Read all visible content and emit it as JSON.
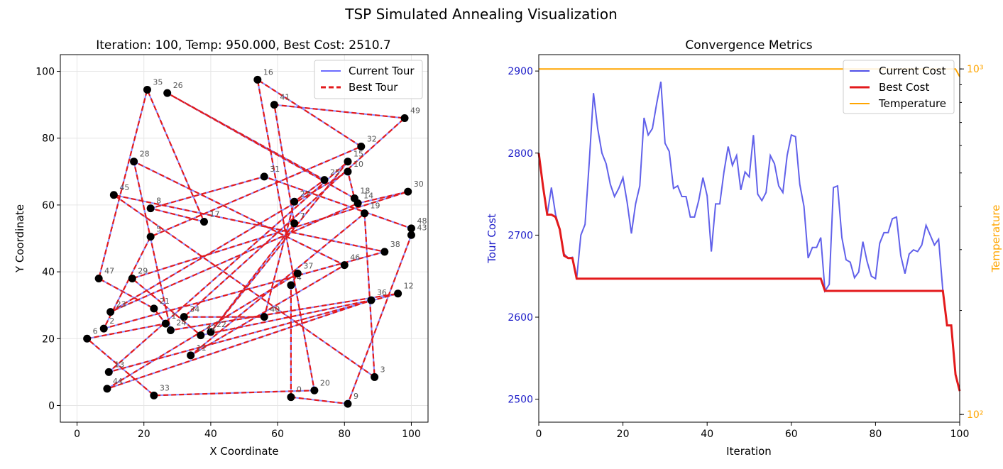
{
  "suptitle": "TSP Simulated Annealing Visualization",
  "chart_data": [
    {
      "type": "scatter",
      "title": "Iteration: 100, Temp: 950.000, Best Cost: 2510.7",
      "xlabel": "X Coordinate",
      "ylabel": "Y Coordinate",
      "xlim": [
        -5,
        105
      ],
      "ylim": [
        -5,
        105
      ],
      "xticks": [
        0,
        20,
        40,
        60,
        80,
        100
      ],
      "yticks": [
        0,
        20,
        40,
        60,
        80,
        100
      ],
      "grid": true,
      "legend": {
        "position": "top-right",
        "entries": [
          "Current Tour",
          "Best Tour"
        ]
      },
      "series_styles": {
        "current": "#6b6bff",
        "best": "#e31a1c",
        "city": "#000000"
      },
      "cities": [
        {
          "id": "0",
          "x": 64,
          "y": 2.5
        },
        {
          "id": "1",
          "x": 26.5,
          "y": 24.5
        },
        {
          "id": "2",
          "x": 8,
          "y": 23
        },
        {
          "id": "3",
          "x": 89,
          "y": 8.5
        },
        {
          "id": "4",
          "x": 64,
          "y": 36
        },
        {
          "id": "5",
          "x": 22,
          "y": 50.5
        },
        {
          "id": "6",
          "x": 3,
          "y": 20
        },
        {
          "id": "7",
          "x": 65,
          "y": 54.5
        },
        {
          "id": "8",
          "x": 22,
          "y": 59
        },
        {
          "id": "9",
          "x": 81,
          "y": 0.5
        },
        {
          "id": "10",
          "x": 81,
          "y": 70
        },
        {
          "id": "11",
          "x": 34,
          "y": 15
        },
        {
          "id": "12",
          "x": 96,
          "y": 33.5
        },
        {
          "id": "14",
          "x": 84,
          "y": 60.5
        },
        {
          "id": "15",
          "x": 81,
          "y": 73
        },
        {
          "id": "16",
          "x": 54,
          "y": 97.5
        },
        {
          "id": "17",
          "x": 38,
          "y": 55
        },
        {
          "id": "18",
          "x": 83,
          "y": 62
        },
        {
          "id": "19",
          "x": 86,
          "y": 57.5
        },
        {
          "id": "20",
          "x": 71,
          "y": 4.5
        },
        {
          "id": "21",
          "x": 23,
          "y": 29
        },
        {
          "id": "22",
          "x": 40,
          "y": 22
        },
        {
          "id": "23",
          "x": 10,
          "y": 28
        },
        {
          "id": "26",
          "x": 27,
          "y": 93.5
        },
        {
          "id": "27",
          "x": 65,
          "y": 61
        },
        {
          "id": "28",
          "x": 17,
          "y": 73
        },
        {
          "id": "29",
          "x": 16.5,
          "y": 38
        },
        {
          "id": "30",
          "x": 99,
          "y": 64
        },
        {
          "id": "31",
          "x": 56,
          "y": 68.5
        },
        {
          "id": "32",
          "x": 85,
          "y": 77.5
        },
        {
          "id": "33",
          "x": 23,
          "y": 3
        },
        {
          "id": "34",
          "x": 32,
          "y": 26.5
        },
        {
          "id": "35",
          "x": 21,
          "y": 94.5
        },
        {
          "id": "36",
          "x": 88,
          "y": 31.5
        },
        {
          "id": "37",
          "x": 66,
          "y": 39.5
        },
        {
          "id": "38",
          "x": 92,
          "y": 46
        },
        {
          "id": "40",
          "x": 56,
          "y": 26.5
        },
        {
          "id": "41",
          "x": 59,
          "y": 90
        },
        {
          "id": "42",
          "x": 37,
          "y": 21
        },
        {
          "id": "43",
          "x": 100,
          "y": 51
        },
        {
          "id": "44",
          "x": 9,
          "y": 5
        },
        {
          "id": "45",
          "x": 11,
          "y": 63
        },
        {
          "id": "46",
          "x": 80,
          "y": 42
        },
        {
          "id": "47",
          "x": 6.5,
          "y": 38
        },
        {
          "id": "48",
          "x": 100,
          "y": 53
        },
        {
          "id": "49",
          "x": 98,
          "y": 86
        },
        {
          "id": "13",
          "x": 9.5,
          "y": 10
        },
        {
          "id": "24",
          "x": 28,
          "y": 22.5
        },
        {
          "id": "25",
          "x": 74,
          "y": 67.5
        }
      ],
      "tour": [
        "0",
        "9",
        "43",
        "48",
        "31",
        "8",
        "17",
        "35",
        "47",
        "21",
        "1",
        "6",
        "33",
        "20",
        "16",
        "32",
        "5",
        "2",
        "38",
        "45",
        "3",
        "19",
        "11",
        "46",
        "28",
        "24",
        "12",
        "13",
        "15",
        "22",
        "7",
        "41",
        "49",
        "34",
        "40",
        "27",
        "25",
        "26",
        "18",
        "10",
        "23",
        "14",
        "30",
        "29",
        "42",
        "36",
        "44",
        "37",
        "4",
        "0"
      ]
    },
    {
      "type": "line",
      "title": "Convergence Metrics",
      "xlabel": "Iteration",
      "ylabel": "Tour Cost",
      "y2label": "Temperature",
      "xlim": [
        0,
        100
      ],
      "ylim": [
        2472,
        2920
      ],
      "xticks": [
        0,
        20,
        40,
        60,
        80,
        100
      ],
      "yticks": [
        2500,
        2600,
        2700,
        2800,
        2900
      ],
      "y2scale": "log",
      "y2lim": [
        95,
        1100
      ],
      "y2ticks": [
        {
          "value": 100,
          "label": "10²"
        },
        {
          "value": 1000,
          "label": "10³"
        }
      ],
      "legend": {
        "position": "top-right",
        "entries": [
          "Current Cost",
          "Best Cost",
          "Temperature"
        ]
      },
      "series": [
        {
          "name": "Current Cost",
          "color": "#5050e8",
          "x": [
            0,
            1,
            2,
            3,
            4,
            5,
            6,
            7,
            8,
            9,
            10,
            11,
            12,
            13,
            14,
            15,
            16,
            17,
            18,
            19,
            20,
            21,
            22,
            23,
            24,
            25,
            26,
            27,
            28,
            29,
            30,
            31,
            32,
            33,
            34,
            35,
            36,
            37,
            38,
            39,
            40,
            41,
            42,
            43,
            44,
            45,
            46,
            47,
            48,
            49,
            50,
            51,
            52,
            53,
            54,
            55,
            56,
            57,
            58,
            59,
            60,
            61,
            62,
            63,
            64,
            65,
            66,
            67,
            68,
            69,
            70,
            71,
            72,
            73,
            74,
            75,
            76,
            77,
            78,
            79,
            80,
            81,
            82,
            83,
            84,
            85,
            86,
            87,
            88,
            89,
            90,
            91,
            92,
            93,
            94,
            95,
            96,
            97,
            98,
            99,
            100
          ],
          "values": [
            2800,
            2760,
            2725,
            2758,
            2725,
            2707,
            2677,
            2672,
            2673,
            2647,
            2700,
            2713,
            2790,
            2873,
            2830,
            2800,
            2787,
            2762,
            2747,
            2757,
            2770,
            2740,
            2702,
            2738,
            2760,
            2843,
            2822,
            2830,
            2860,
            2887,
            2812,
            2802,
            2757,
            2760,
            2747,
            2747,
            2722,
            2722,
            2742,
            2770,
            2748,
            2680,
            2738,
            2738,
            2777,
            2808,
            2785,
            2797,
            2755,
            2777,
            2771,
            2822,
            2750,
            2742,
            2752,
            2797,
            2787,
            2760,
            2752,
            2797,
            2822,
            2820,
            2762,
            2735,
            2672,
            2685,
            2685,
            2697,
            2632,
            2640,
            2758,
            2760,
            2697,
            2670,
            2667,
            2648,
            2655,
            2692,
            2668,
            2650,
            2647,
            2690,
            2703,
            2703,
            2720,
            2722,
            2675,
            2653,
            2677,
            2682,
            2680,
            2688,
            2712,
            2700,
            2688,
            2695,
            2632,
            2590,
            2590,
            2530,
            2510
          ]
        },
        {
          "name": "Best Cost",
          "color": "#e31a1c",
          "x": [
            0,
            1,
            2,
            3,
            4,
            5,
            6,
            7,
            8,
            9,
            67,
            68,
            96,
            97,
            98,
            99,
            100
          ],
          "values": [
            2800,
            2760,
            2725,
            2725,
            2722,
            2707,
            2675,
            2672,
            2672,
            2647,
            2647,
            2632,
            2632,
            2590,
            2590,
            2530,
            2510
          ]
        },
        {
          "name": "Temperature",
          "color": "#ffa500",
          "axis": "secondary",
          "x": [
            0,
            99,
            100
          ],
          "values": [
            1000,
            1000,
            950
          ]
        }
      ]
    }
  ]
}
